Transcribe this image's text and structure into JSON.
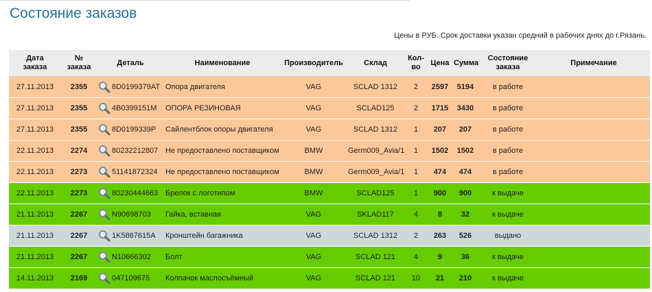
{
  "page": {
    "title": "Состояние заказов",
    "note": "Цены в РУБ. Срок доставки указан средний в рабочих днях до г.Рязань."
  },
  "columns": {
    "date_1": "Дата",
    "date_2": "заказа",
    "order_1": "№",
    "order_2": "заказа",
    "detail": "Деталь",
    "name": "Наименование",
    "maker": "Производитель",
    "stock": "Склад",
    "qty_1": "Кол-",
    "qty_2": "во",
    "price": "Цена",
    "sum": "Сумма",
    "status_1": "Состояние",
    "status_2": "заказа",
    "note": "Примечание"
  },
  "colors": {
    "in_work": "#fdc899",
    "to_issue": "#66cc00",
    "issued": "#cfd8d8",
    "title": "#2a6f97"
  },
  "icons": {
    "detail_search": "magnifier-icon"
  },
  "rows": [
    {
      "state": "st-work",
      "date": "27.11.2013",
      "order": "2355",
      "part": "8D0199379AT",
      "name": "Опора двигателя",
      "maker": "VAG",
      "stock": "SCLAD 1312",
      "qty": "2",
      "price": "2597",
      "sum": "5194",
      "status": "в работе",
      "note": ""
    },
    {
      "state": "st-work",
      "date": "27.11.2013",
      "order": "2355",
      "part": "4B0399151M",
      "name": "ОПОРА РЕЗИНОВАЯ",
      "maker": "VAG",
      "stock": "SCLAD125",
      "qty": "2",
      "price": "1715",
      "sum": "3430",
      "status": "в работе",
      "note": ""
    },
    {
      "state": "st-work",
      "date": "27.11.2013",
      "order": "2355",
      "part": "8D0199339P",
      "name": "Сайлентблок опоры двигателя",
      "maker": "VAG",
      "stock": "SCLAD 1312",
      "qty": "1",
      "price": "207",
      "sum": "207",
      "status": "в работе",
      "note": ""
    },
    {
      "state": "st-work",
      "date": "22.11.2013",
      "order": "2274",
      "part": "80232212807",
      "name": "Не предоставлено поставщиком",
      "maker": "BMW",
      "stock": "Germ009_Avia/1",
      "qty": "1",
      "price": "1502",
      "sum": "1502",
      "status": "в работе",
      "note": ""
    },
    {
      "state": "st-work",
      "date": "22.11.2013",
      "order": "2273",
      "part": "51141872324",
      "name": "Не предоставлено поставщиком",
      "maker": "BMW",
      "stock": "Germ009_Avia/1",
      "qty": "1",
      "price": "474",
      "sum": "474",
      "status": "в работе",
      "note": ""
    },
    {
      "state": "st-issue",
      "date": "22.11.2013",
      "order": "2273",
      "part": "80230444663",
      "name": "Брелок с логотипом",
      "maker": "BMW",
      "stock": "SCLAD125",
      "qty": "1",
      "price": "900",
      "sum": "900",
      "status": "к выдаче",
      "note": ""
    },
    {
      "state": "st-issue",
      "date": "21.11.2013",
      "order": "2267",
      "part": "N90698703",
      "name": "Гайка, вставная",
      "maker": "VAG",
      "stock": "SKLAD117",
      "qty": "4",
      "price": "8",
      "sum": "32",
      "status": "к выдаче",
      "note": ""
    },
    {
      "state": "st-done",
      "date": "21.11.2013",
      "order": "2267",
      "part": "1K5867615A",
      "name": "Кронштейн багажника",
      "maker": "VAG",
      "stock": "SCLAD 1312",
      "qty": "2",
      "price": "263",
      "sum": "526",
      "status": "выдано",
      "note": ""
    },
    {
      "state": "st-issue",
      "date": "21.11.2013",
      "order": "2267",
      "part": "N10666302",
      "name": "Болт",
      "maker": "VAG",
      "stock": "SCLAD 121",
      "qty": "4",
      "price": "9",
      "sum": "36",
      "status": "к выдаче",
      "note": ""
    },
    {
      "state": "st-issue",
      "date": "14.11.2013",
      "order": "2169",
      "part": "047109675",
      "name": "Колпачок маслосъёмный",
      "maker": "VAG",
      "stock": "SCLAD 121",
      "qty": "10",
      "price": "21",
      "sum": "210",
      "status": "к выдаче",
      "note": ""
    }
  ]
}
